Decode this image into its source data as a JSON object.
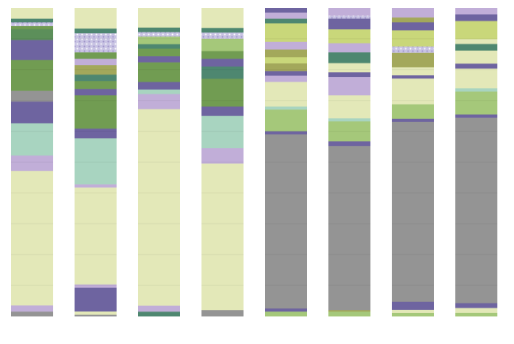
{
  "chart_data": {
    "type": "bar",
    "stacked": true,
    "normalized": true,
    "title": "",
    "xlabel": "",
    "ylabel": "",
    "ylim": [
      0,
      100
    ],
    "grid": false,
    "legend": "none",
    "categories": [
      "",
      "",
      "",
      "",
      "",
      "",
      "",
      ""
    ],
    "colors": {
      "light_yellow": "#e3e8b8",
      "gray": "#949494",
      "sage": "#719c52",
      "dark_green": "#5c8f5a",
      "teal_green": "#4e8770",
      "mint": "#a8d4c0",
      "purple": "#6e64a0",
      "lavender": "#c1aed8",
      "yellow_green": "#c9d77a",
      "light_green": "#a5c87a",
      "olive": "#a3a85b",
      "pattern_lavender": "#c8c3e3"
    },
    "columns": [
      {
        "segments": [
          {
            "color": "light_yellow",
            "value": 3.5
          },
          {
            "color": "teal_green",
            "value": 1.2
          },
          {
            "color": "pattern_lavender",
            "value": 1.2
          },
          {
            "color": "sage",
            "value": 1.0
          },
          {
            "color": "dark_green",
            "value": 3.5
          },
          {
            "color": "purple",
            "value": 6.5
          },
          {
            "color": "sage",
            "value": 10.0
          },
          {
            "color": "gray",
            "value": 3.5
          },
          {
            "color": "purple",
            "value": 7.0
          },
          {
            "color": "mint",
            "value": 10.5
          },
          {
            "color": "lavender",
            "value": 5.0
          },
          {
            "color": "light_yellow",
            "value": 43.6
          },
          {
            "color": "lavender",
            "value": 2.0
          },
          {
            "color": "gray",
            "value": 1.5
          }
        ]
      },
      {
        "segments": [
          {
            "color": "light_yellow",
            "value": 6.5
          },
          {
            "color": "teal_green",
            "value": 1.5
          },
          {
            "color": "pattern_lavender",
            "value": 6.0
          },
          {
            "color": "sage",
            "value": 2.0
          },
          {
            "color": "lavender",
            "value": 2.0
          },
          {
            "color": "olive",
            "value": 3.0
          },
          {
            "color": "teal_green",
            "value": 2.0
          },
          {
            "color": "sage",
            "value": 2.5
          },
          {
            "color": "purple",
            "value": 2.0
          },
          {
            "color": "sage",
            "value": 10.5
          },
          {
            "color": "purple",
            "value": 3.0
          },
          {
            "color": "mint",
            "value": 14.5
          },
          {
            "color": "lavender",
            "value": 1.0
          },
          {
            "color": "light_yellow",
            "value": 30.5
          },
          {
            "color": "lavender",
            "value": 1.0
          },
          {
            "color": "purple",
            "value": 7.5
          },
          {
            "color": "light_yellow",
            "value": 1.0
          },
          {
            "color": "gray",
            "value": 0.5
          }
        ]
      },
      {
        "segments": [
          {
            "color": "light_yellow",
            "value": 6.5
          },
          {
            "color": "teal_green",
            "value": 1.5
          },
          {
            "color": "pattern_lavender",
            "value": 1.5
          },
          {
            "color": "light_green",
            "value": 2.5
          },
          {
            "color": "teal_green",
            "value": 1.5
          },
          {
            "color": "sage",
            "value": 2.5
          },
          {
            "color": "purple",
            "value": 2.0
          },
          {
            "color": "sage",
            "value": 6.5
          },
          {
            "color": "purple",
            "value": 2.5
          },
          {
            "color": "mint",
            "value": 1.5
          },
          {
            "color": "lavender",
            "value": 5.0
          },
          {
            "color": "light_yellow",
            "value": 65.0
          },
          {
            "color": "lavender",
            "value": 2.0
          },
          {
            "color": "teal_green",
            "value": 1.5
          }
        ]
      },
      {
        "segments": [
          {
            "color": "light_yellow",
            "value": 6.5
          },
          {
            "color": "teal_green",
            "value": 1.5
          },
          {
            "color": "pattern_lavender",
            "value": 2.0
          },
          {
            "color": "light_green",
            "value": 4.0
          },
          {
            "color": "sage",
            "value": 2.5
          },
          {
            "color": "purple",
            "value": 2.5
          },
          {
            "color": "teal_green",
            "value": 4.0
          },
          {
            "color": "sage",
            "value": 9.0
          },
          {
            "color": "purple",
            "value": 3.0
          },
          {
            "color": "mint",
            "value": 10.5
          },
          {
            "color": "lavender",
            "value": 5.0
          },
          {
            "color": "light_yellow",
            "value": 47.5
          },
          {
            "color": "gray",
            "value": 2.0
          }
        ]
      },
      {
        "segments": [
          {
            "color": "purple",
            "value": 1.5
          },
          {
            "color": "lavender",
            "value": 2.0
          },
          {
            "color": "teal_green",
            "value": 1.5
          },
          {
            "color": "yellow_green",
            "value": 6.0
          },
          {
            "color": "lavender",
            "value": 2.5
          },
          {
            "color": "olive",
            "value": 2.5
          },
          {
            "color": "yellow_green",
            "value": 2.0
          },
          {
            "color": "olive",
            "value": 2.5
          },
          {
            "color": "purple",
            "value": 1.5
          },
          {
            "color": "lavender",
            "value": 2.0
          },
          {
            "color": "light_yellow",
            "value": 8.0
          },
          {
            "color": "mint",
            "value": 1.0
          },
          {
            "color": "light_green",
            "value": 7.0
          },
          {
            "color": "purple",
            "value": 1.0
          },
          {
            "color": "gray",
            "value": 56.5
          },
          {
            "color": "purple",
            "value": 1.0
          },
          {
            "color": "light_green",
            "value": 1.5
          }
        ]
      },
      {
        "segments": [
          {
            "color": "lavender",
            "value": 2.5
          },
          {
            "color": "pattern_lavender",
            "value": 1.0
          },
          {
            "color": "purple",
            "value": 3.5
          },
          {
            "color": "yellow_green",
            "value": 4.5
          },
          {
            "color": "lavender",
            "value": 3.0
          },
          {
            "color": "teal_green",
            "value": 3.5
          },
          {
            "color": "light_yellow",
            "value": 3.0
          },
          {
            "color": "purple",
            "value": 1.5
          },
          {
            "color": "lavender",
            "value": 6.0
          },
          {
            "color": "light_yellow",
            "value": 7.5
          },
          {
            "color": "mint",
            "value": 1.0
          },
          {
            "color": "light_green",
            "value": 6.5
          },
          {
            "color": "purple",
            "value": 1.5
          },
          {
            "color": "gray",
            "value": 53.5
          },
          {
            "color": "olive",
            "value": 0.5
          },
          {
            "color": "light_green",
            "value": 1.5
          }
        ]
      },
      {
        "segments": [
          {
            "color": "lavender",
            "value": 3.0
          },
          {
            "color": "olive",
            "value": 1.5
          },
          {
            "color": "purple",
            "value": 2.5
          },
          {
            "color": "yellow_green",
            "value": 5.0
          },
          {
            "color": "pattern_lavender",
            "value": 2.0
          },
          {
            "color": "olive",
            "value": 4.5
          },
          {
            "color": "light_yellow",
            "value": 2.5
          },
          {
            "color": "purple",
            "value": 1.0
          },
          {
            "color": "light_yellow",
            "value": 8.0
          },
          {
            "color": "light_green",
            "value": 4.5
          },
          {
            "color": "purple",
            "value": 1.0
          },
          {
            "color": "gray",
            "value": 56.0
          },
          {
            "color": "purple",
            "value": 2.5
          },
          {
            "color": "light_yellow",
            "value": 1.0
          },
          {
            "color": "light_green",
            "value": 1.0
          }
        ]
      },
      {
        "segments": [
          {
            "color": "lavender",
            "value": 2.0
          },
          {
            "color": "purple",
            "value": 2.0
          },
          {
            "color": "yellow_green",
            "value": 5.5
          },
          {
            "color": "light_yellow",
            "value": 1.5
          },
          {
            "color": "teal_green",
            "value": 2.0
          },
          {
            "color": "light_yellow",
            "value": 4.0
          },
          {
            "color": "purple",
            "value": 1.5
          },
          {
            "color": "light_yellow",
            "value": 6.0
          },
          {
            "color": "mint",
            "value": 1.0
          },
          {
            "color": "light_green",
            "value": 7.0
          },
          {
            "color": "purple",
            "value": 1.0
          },
          {
            "color": "gray",
            "value": 56.5
          },
          {
            "color": "purple",
            "value": 1.5
          },
          {
            "color": "light_yellow",
            "value": 1.5
          },
          {
            "color": "light_green",
            "value": 1.0
          }
        ]
      }
    ]
  }
}
